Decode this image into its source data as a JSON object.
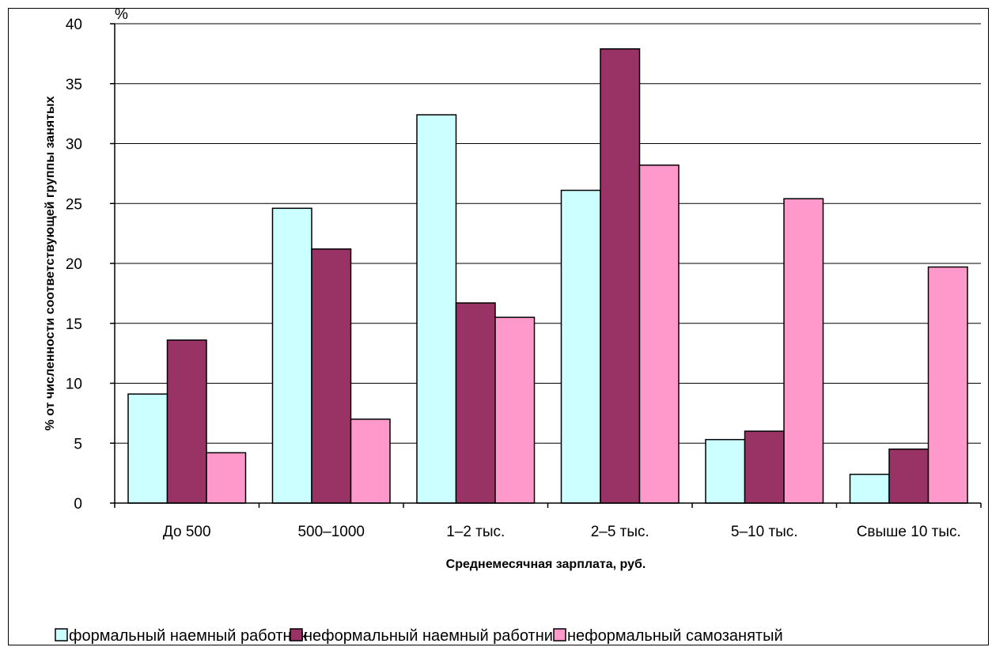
{
  "chart_data": {
    "type": "bar",
    "unit_label": "%",
    "xlabel": "Среднемесячная зарплата, руб.",
    "ylabel": "% от численности соответствующей группы занятых",
    "ylim": [
      0,
      40
    ],
    "yticks": [
      "0",
      "5",
      "10",
      "15",
      "20",
      "25",
      "30",
      "35",
      "40"
    ],
    "grid": true,
    "legend_position": "bottom",
    "categories": [
      "До 500",
      "500–1000",
      "1–2 тыс.",
      "2–5 тыс.",
      "5–10 тыс.",
      "Свыше 10 тыс."
    ],
    "series": [
      {
        "name": "формальный наемный работник",
        "color": "#CCFFFF",
        "values": [
          9.1,
          24.6,
          32.4,
          26.1,
          5.3,
          2.4
        ]
      },
      {
        "name": "неформальный наемный работник",
        "color": "#993366",
        "values": [
          13.6,
          21.2,
          16.7,
          37.9,
          6.0,
          4.5
        ]
      },
      {
        "name": "неформальный самозанятый",
        "color": "#FF99CC",
        "values": [
          4.2,
          7.0,
          15.5,
          28.2,
          25.4,
          19.7
        ]
      }
    ]
  }
}
